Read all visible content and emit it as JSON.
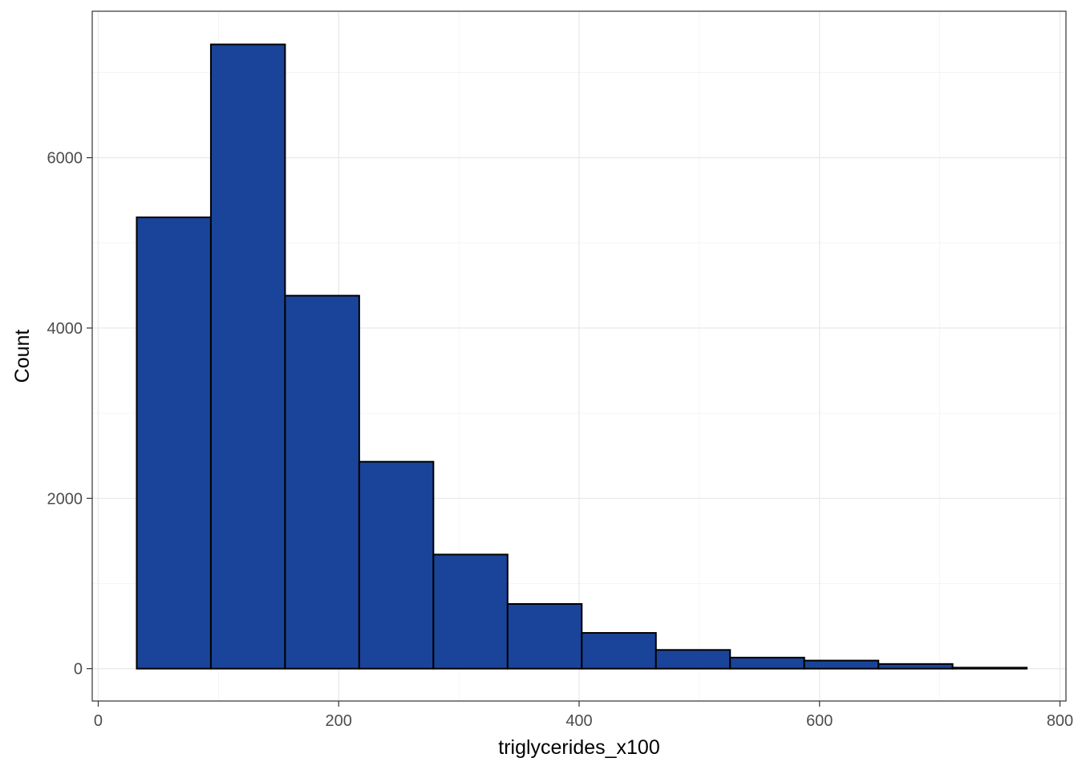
{
  "chart_data": {
    "type": "bar",
    "subtype": "histogram",
    "title": "",
    "xlabel": "triglycerides_x100",
    "ylabel": "Count",
    "xlim": [
      -5,
      805
    ],
    "ylim": [
      -380,
      7720
    ],
    "x_ticks": [
      0,
      200,
      400,
      600,
      800
    ],
    "y_ticks": [
      0,
      2000,
      4000,
      6000
    ],
    "x_minor_ticks": [
      100,
      300,
      500,
      700
    ],
    "y_minor_ticks": [
      1000,
      3000,
      5000,
      7000
    ],
    "grid": true,
    "legend": "none",
    "bar_fill": "#1a4499",
    "bar_stroke": "#000000",
    "bins": [
      {
        "x0": 32.0,
        "x1": 93.7,
        "count": 5300
      },
      {
        "x0": 93.7,
        "x1": 155.4,
        "count": 7330
      },
      {
        "x0": 155.4,
        "x1": 217.1,
        "count": 4380
      },
      {
        "x0": 217.1,
        "x1": 278.8,
        "count": 2430
      },
      {
        "x0": 278.8,
        "x1": 340.5,
        "count": 1340
      },
      {
        "x0": 340.5,
        "x1": 402.2,
        "count": 760
      },
      {
        "x0": 402.2,
        "x1": 463.9,
        "count": 420
      },
      {
        "x0": 463.9,
        "x1": 525.6,
        "count": 220
      },
      {
        "x0": 525.6,
        "x1": 587.3,
        "count": 130
      },
      {
        "x0": 587.3,
        "x1": 649.0,
        "count": 95
      },
      {
        "x0": 649.0,
        "x1": 710.7,
        "count": 55
      },
      {
        "x0": 710.7,
        "x1": 772.4,
        "count": 12
      }
    ]
  }
}
